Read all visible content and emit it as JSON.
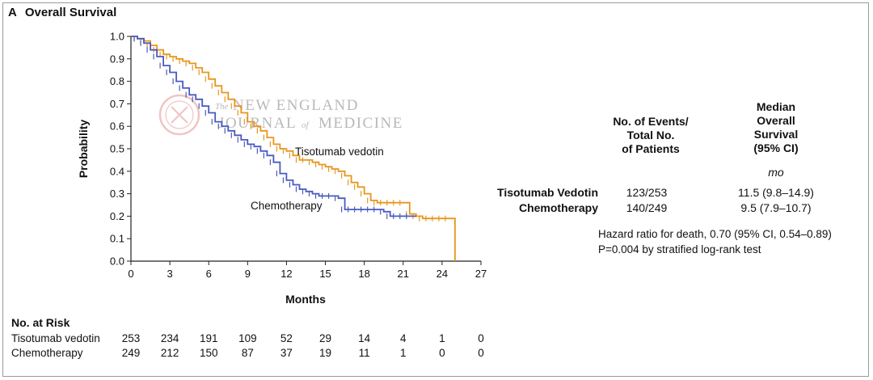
{
  "panel": {
    "letter": "A",
    "title": "Overall Survival"
  },
  "watermark": {
    "the": "The",
    "line1": "NEW ENGLAND",
    "line2a": "JOURNAL",
    "line2_of": "of",
    "line2b": "MEDICINE"
  },
  "chart_data": {
    "type": "line",
    "title": "Overall Survival",
    "xlabel": "Months",
    "ylabel": "Probability",
    "xlim": [
      0,
      27
    ],
    "ylim": [
      0,
      1.0
    ],
    "xticks": [
      "0",
      "3",
      "6",
      "9",
      "12",
      "15",
      "18",
      "21",
      "24",
      "27"
    ],
    "yticks": [
      "0.0",
      "0.1",
      "0.2",
      "0.3",
      "0.4",
      "0.5",
      "0.6",
      "0.7",
      "0.8",
      "0.9",
      "1.0"
    ],
    "series": [
      {
        "name": "Tisotumab vedotin",
        "label": "Tisotumab vedotin",
        "color": "#e8961e",
        "x": [
          0,
          0.5,
          1.0,
          1.5,
          2.0,
          2.5,
          3.0,
          3.5,
          4.0,
          4.5,
          5.0,
          5.5,
          6.0,
          6.5,
          7.0,
          7.5,
          8.0,
          8.5,
          9.0,
          9.5,
          10.0,
          10.5,
          11.0,
          11.5,
          12.0,
          12.5,
          13.0,
          13.5,
          14.0,
          14.5,
          15.0,
          15.5,
          16.0,
          16.5,
          17.0,
          17.5,
          18.0,
          18.5,
          19.0,
          19.5,
          20.0,
          20.5,
          21.0,
          21.5,
          22.0,
          22.5,
          23.0,
          23.5,
          24.0,
          24.5,
          25.0
        ],
        "y": [
          1.0,
          0.99,
          0.98,
          0.96,
          0.94,
          0.92,
          0.91,
          0.9,
          0.89,
          0.88,
          0.86,
          0.84,
          0.81,
          0.78,
          0.75,
          0.72,
          0.69,
          0.66,
          0.62,
          0.6,
          0.58,
          0.55,
          0.52,
          0.5,
          0.49,
          0.47,
          0.45,
          0.45,
          0.44,
          0.43,
          0.42,
          0.41,
          0.4,
          0.38,
          0.35,
          0.33,
          0.3,
          0.27,
          0.26,
          0.26,
          0.26,
          0.26,
          0.26,
          0.21,
          0.2,
          0.19,
          0.19,
          0.19,
          0.19,
          0.19,
          0.0
        ]
      },
      {
        "name": "Chemotherapy",
        "label": "Chemotherapy",
        "color": "#4a5bbe",
        "x": [
          0,
          0.5,
          1.0,
          1.5,
          2.0,
          2.5,
          3.0,
          3.5,
          4.0,
          4.5,
          5.0,
          5.5,
          6.0,
          6.5,
          7.0,
          7.5,
          8.0,
          8.5,
          9.0,
          9.5,
          10.0,
          10.5,
          11.0,
          11.5,
          12.0,
          12.5,
          13.0,
          13.5,
          14.0,
          14.5,
          15.0,
          15.5,
          16.0,
          16.5,
          17.0,
          17.5,
          18.0,
          18.5,
          19.0,
          19.5,
          20.0,
          20.5,
          21.0,
          21.5,
          22.0
        ],
        "y": [
          1.0,
          0.99,
          0.97,
          0.94,
          0.91,
          0.87,
          0.84,
          0.8,
          0.77,
          0.74,
          0.72,
          0.69,
          0.66,
          0.62,
          0.6,
          0.58,
          0.56,
          0.54,
          0.52,
          0.51,
          0.49,
          0.47,
          0.44,
          0.39,
          0.36,
          0.34,
          0.32,
          0.31,
          0.3,
          0.29,
          0.29,
          0.29,
          0.28,
          0.23,
          0.23,
          0.23,
          0.23,
          0.23,
          0.23,
          0.22,
          0.2,
          0.2,
          0.2,
          0.2,
          0.2
        ]
      }
    ]
  },
  "summary_table": {
    "col1_header": [
      "No. of Events/",
      "Total No.",
      "of Patients"
    ],
    "col2_header": [
      "Median",
      "Overall",
      "Survival",
      "(95% CI)"
    ],
    "units": "mo",
    "rows": [
      {
        "name": "Tisotumab Vedotin",
        "events": "123/253",
        "median": "11.5 (9.8–14.9)"
      },
      {
        "name": "Chemotherapy",
        "events": "140/249",
        "median": "9.5 (7.9–10.7)"
      }
    ],
    "hazard_line1": "Hazard ratio for death, 0.70 (95% CI, 0.54–0.89)",
    "hazard_line2": "P=0.004 by stratified log-rank test"
  },
  "risk_table": {
    "title": "No. at Risk",
    "rows": [
      {
        "name": "Tisotumab vedotin",
        "values": [
          "253",
          "234",
          "191",
          "109",
          "52",
          "29",
          "14",
          "4",
          "1",
          "0"
        ]
      },
      {
        "name": "Chemotherapy",
        "values": [
          "249",
          "212",
          "150",
          "87",
          "37",
          "19",
          "11",
          "1",
          "0",
          "0"
        ]
      }
    ]
  }
}
